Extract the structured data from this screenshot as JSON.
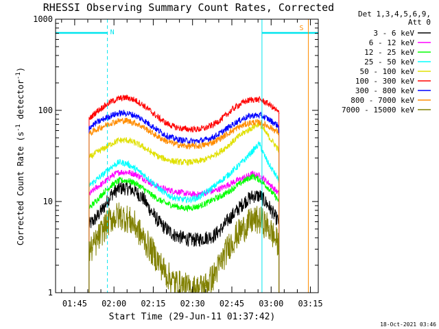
{
  "chart_data": {
    "type": "line",
    "title": "RHESSI Observing Summary Count Rates, Corrected",
    "xlabel": "Start Time (29-Jun-11 01:37:42)",
    "ylabel_main": "Corrected Count Rate (s",
    "ylabel_sup1": "-1",
    "ylabel_mid": " detector",
    "ylabel_sup2": "-1",
    "ylabel_end": ")",
    "yscale": "log",
    "ylim": [
      1,
      1000
    ],
    "xlim_minutes": [
      97.7,
      198
    ],
    "y_ticks": [
      {
        "value": 1,
        "label": "1"
      },
      {
        "value": 10,
        "label": "10"
      },
      {
        "value": 100,
        "label": "100"
      },
      {
        "value": 1000,
        "label": "1000"
      }
    ],
    "x_ticks": [
      {
        "minute": 105,
        "label": "01:45"
      },
      {
        "minute": 120,
        "label": "02:00"
      },
      {
        "minute": 135,
        "label": "02:15"
      },
      {
        "minute": 150,
        "label": "02:30"
      },
      {
        "minute": 165,
        "label": "02:45"
      },
      {
        "minute": 180,
        "label": "03:00"
      },
      {
        "minute": 195,
        "label": "03:15"
      }
    ],
    "legend_header": [
      "Det 1,3,4,5,6,9,",
      "Att 0"
    ],
    "legend_position": "right",
    "flags": [
      {
        "label": "N",
        "color": "#00e5ee",
        "start_minute": 97.7,
        "end_minute": 117.5,
        "solid_end_minute": 97.7,
        "dashed_minute": 117.5
      },
      {
        "label": "S",
        "color": "#ff8c00",
        "start_minute": 176.5,
        "end_minute": 198,
        "solid_start_minute": 176.5,
        "solid_end_minute": 194.2
      }
    ],
    "observation_window_minutes": [
      110.5,
      183
    ],
    "series": [
      {
        "name": "3 - 6 keV",
        "color": "#000000",
        "points": [
          [
            110.5,
            5.5
          ],
          [
            113,
            6.5
          ],
          [
            116,
            8.5
          ],
          [
            119,
            12
          ],
          [
            122,
            14
          ],
          [
            125,
            14
          ],
          [
            128,
            13
          ],
          [
            131,
            11
          ],
          [
            134,
            8
          ],
          [
            137,
            6
          ],
          [
            140,
            5
          ],
          [
            143,
            4.3
          ],
          [
            146,
            4
          ],
          [
            149,
            3.8
          ],
          [
            152,
            3.8
          ],
          [
            155,
            4
          ],
          [
            158,
            4.2
          ],
          [
            161,
            5
          ],
          [
            164,
            6.5
          ],
          [
            167,
            8
          ],
          [
            170,
            10
          ],
          [
            173,
            11.5
          ],
          [
            176,
            11.5
          ],
          [
            179,
            9
          ],
          [
            182,
            6.5
          ],
          [
            183,
            6
          ]
        ]
      },
      {
        "name": "6 - 12 keV",
        "color": "#ff00ff",
        "points": [
          [
            110.5,
            12
          ],
          [
            113,
            14
          ],
          [
            116,
            16
          ],
          [
            119,
            19
          ],
          [
            122,
            21
          ],
          [
            125,
            21
          ],
          [
            128,
            20
          ],
          [
            131,
            18
          ],
          [
            134,
            16
          ],
          [
            137,
            14.5
          ],
          [
            140,
            13.5
          ],
          [
            143,
            13
          ],
          [
            146,
            12.5
          ],
          [
            149,
            12
          ],
          [
            152,
            12
          ],
          [
            155,
            12.5
          ],
          [
            158,
            13
          ],
          [
            161,
            14
          ],
          [
            164,
            15.5
          ],
          [
            167,
            17
          ],
          [
            170,
            18.5
          ],
          [
            173,
            20
          ],
          [
            176,
            19
          ],
          [
            179,
            16
          ],
          [
            182,
            13
          ],
          [
            183,
            12
          ]
        ]
      },
      {
        "name": "12 - 25 keV",
        "color": "#00ff00",
        "points": [
          [
            110.5,
            8.5
          ],
          [
            113,
            10
          ],
          [
            116,
            12.5
          ],
          [
            119,
            15
          ],
          [
            122,
            17
          ],
          [
            125,
            17
          ],
          [
            128,
            16
          ],
          [
            131,
            14
          ],
          [
            134,
            12
          ],
          [
            137,
            10.5
          ],
          [
            140,
            9.5
          ],
          [
            143,
            9
          ],
          [
            146,
            8.5
          ],
          [
            149,
            8.5
          ],
          [
            152,
            8.8
          ],
          [
            155,
            9.5
          ],
          [
            158,
            10.5
          ],
          [
            161,
            11.5
          ],
          [
            164,
            13
          ],
          [
            167,
            15
          ],
          [
            170,
            17
          ],
          [
            173,
            19
          ],
          [
            176,
            17
          ],
          [
            179,
            14
          ],
          [
            182,
            11
          ],
          [
            183,
            10
          ]
        ]
      },
      {
        "name": "25 - 50 keV",
        "color": "#00ffff",
        "points": [
          [
            110.5,
            15
          ],
          [
            113,
            17
          ],
          [
            116,
            20
          ],
          [
            119,
            24
          ],
          [
            122,
            27
          ],
          [
            125,
            26
          ],
          [
            128,
            23
          ],
          [
            131,
            20
          ],
          [
            134,
            17
          ],
          [
            137,
            14
          ],
          [
            140,
            12
          ],
          [
            143,
            11
          ],
          [
            146,
            10.5
          ],
          [
            149,
            10.5
          ],
          [
            152,
            11
          ],
          [
            155,
            12.5
          ],
          [
            158,
            14.5
          ],
          [
            161,
            17
          ],
          [
            164,
            20
          ],
          [
            167,
            24
          ],
          [
            170,
            29
          ],
          [
            173,
            36
          ],
          [
            175.5,
            43
          ],
          [
            177,
            34
          ],
          [
            179,
            26
          ],
          [
            182,
            19
          ],
          [
            183,
            17
          ]
        ]
      },
      {
        "name": "50 - 100 keV",
        "color": "#e0e000",
        "points": [
          [
            110.5,
            30
          ],
          [
            113,
            34
          ],
          [
            116,
            38
          ],
          [
            119,
            43
          ],
          [
            122,
            47
          ],
          [
            125,
            47
          ],
          [
            128,
            44
          ],
          [
            131,
            40
          ],
          [
            134,
            35
          ],
          [
            137,
            31
          ],
          [
            140,
            29
          ],
          [
            143,
            27.5
          ],
          [
            146,
            27
          ],
          [
            149,
            27
          ],
          [
            152,
            27.5
          ],
          [
            155,
            29
          ],
          [
            158,
            32
          ],
          [
            161,
            36
          ],
          [
            164,
            42
          ],
          [
            167,
            50
          ],
          [
            170,
            58
          ],
          [
            173,
            65
          ],
          [
            175.5,
            72
          ],
          [
            177,
            62
          ],
          [
            179,
            52
          ],
          [
            182,
            40
          ],
          [
            183,
            36
          ]
        ]
      },
      {
        "name": "100 - 300 keV",
        "color": "#ff0000",
        "points": [
          [
            110.5,
            80
          ],
          [
            113,
            95
          ],
          [
            116,
            110
          ],
          [
            119,
            125
          ],
          [
            122,
            135
          ],
          [
            125,
            138
          ],
          [
            128,
            130
          ],
          [
            131,
            115
          ],
          [
            134,
            98
          ],
          [
            137,
            83
          ],
          [
            140,
            72
          ],
          [
            143,
            66
          ],
          [
            146,
            63
          ],
          [
            149,
            62
          ],
          [
            152,
            62
          ],
          [
            155,
            64
          ],
          [
            158,
            70
          ],
          [
            161,
            80
          ],
          [
            164,
            95
          ],
          [
            167,
            112
          ],
          [
            170,
            125
          ],
          [
            173,
            132
          ],
          [
            176,
            130
          ],
          [
            179,
            118
          ],
          [
            182,
            100
          ],
          [
            183,
            93
          ]
        ]
      },
      {
        "name": "300 - 800 keV",
        "color": "#0000ff",
        "points": [
          [
            110.5,
            65
          ],
          [
            113,
            72
          ],
          [
            116,
            80
          ],
          [
            119,
            88
          ],
          [
            122,
            93
          ],
          [
            125,
            93
          ],
          [
            128,
            88
          ],
          [
            131,
            79
          ],
          [
            134,
            69
          ],
          [
            137,
            60
          ],
          [
            140,
            53
          ],
          [
            143,
            49
          ],
          [
            146,
            47
          ],
          [
            149,
            46
          ],
          [
            152,
            46
          ],
          [
            155,
            47.5
          ],
          [
            158,
            51
          ],
          [
            161,
            57
          ],
          [
            164,
            66
          ],
          [
            167,
            75
          ],
          [
            170,
            83
          ],
          [
            173,
            88
          ],
          [
            176,
            88
          ],
          [
            179,
            80
          ],
          [
            182,
            70
          ],
          [
            183,
            66
          ]
        ]
      },
      {
        "name": "800 - 7000 keV",
        "color": "#ff8c00",
        "points": [
          [
            110.5,
            55
          ],
          [
            113,
            61
          ],
          [
            116,
            67
          ],
          [
            119,
            73
          ],
          [
            122,
            77
          ],
          [
            125,
            77
          ],
          [
            128,
            73
          ],
          [
            131,
            66
          ],
          [
            134,
            58
          ],
          [
            137,
            51
          ],
          [
            140,
            46
          ],
          [
            143,
            43
          ],
          [
            146,
            41
          ],
          [
            149,
            40.5
          ],
          [
            152,
            40.5
          ],
          [
            155,
            42
          ],
          [
            158,
            45
          ],
          [
            161,
            50
          ],
          [
            164,
            57
          ],
          [
            167,
            64
          ],
          [
            170,
            70
          ],
          [
            173,
            74
          ],
          [
            176,
            73
          ],
          [
            179,
            67
          ],
          [
            182,
            59
          ],
          [
            183,
            56
          ]
        ]
      },
      {
        "name": "7000 - 15000 keV",
        "color": "#808000",
        "points": [
          [
            110.5,
            2.8
          ],
          [
            113,
            3.5
          ],
          [
            116,
            5
          ],
          [
            119,
            6.5
          ],
          [
            122,
            7
          ],
          [
            125,
            6.5
          ],
          [
            128,
            5.5
          ],
          [
            131,
            4
          ],
          [
            134,
            3
          ],
          [
            137,
            2.2
          ],
          [
            140,
            1.6
          ],
          [
            143,
            1.3
          ],
          [
            146,
            1.2
          ],
          [
            149,
            1.1
          ],
          [
            152,
            1.1
          ],
          [
            155,
            1.2
          ],
          [
            158,
            1.5
          ],
          [
            161,
            2.2
          ],
          [
            164,
            3.3
          ],
          [
            167,
            4.3
          ],
          [
            170,
            5.3
          ],
          [
            173,
            6.2
          ],
          [
            176,
            6.2
          ],
          [
            179,
            5.2
          ],
          [
            182,
            3.7
          ],
          [
            183,
            3.2
          ]
        ]
      }
    ]
  },
  "footer": {
    "timestamp": "18-Oct-2021 03:46"
  }
}
